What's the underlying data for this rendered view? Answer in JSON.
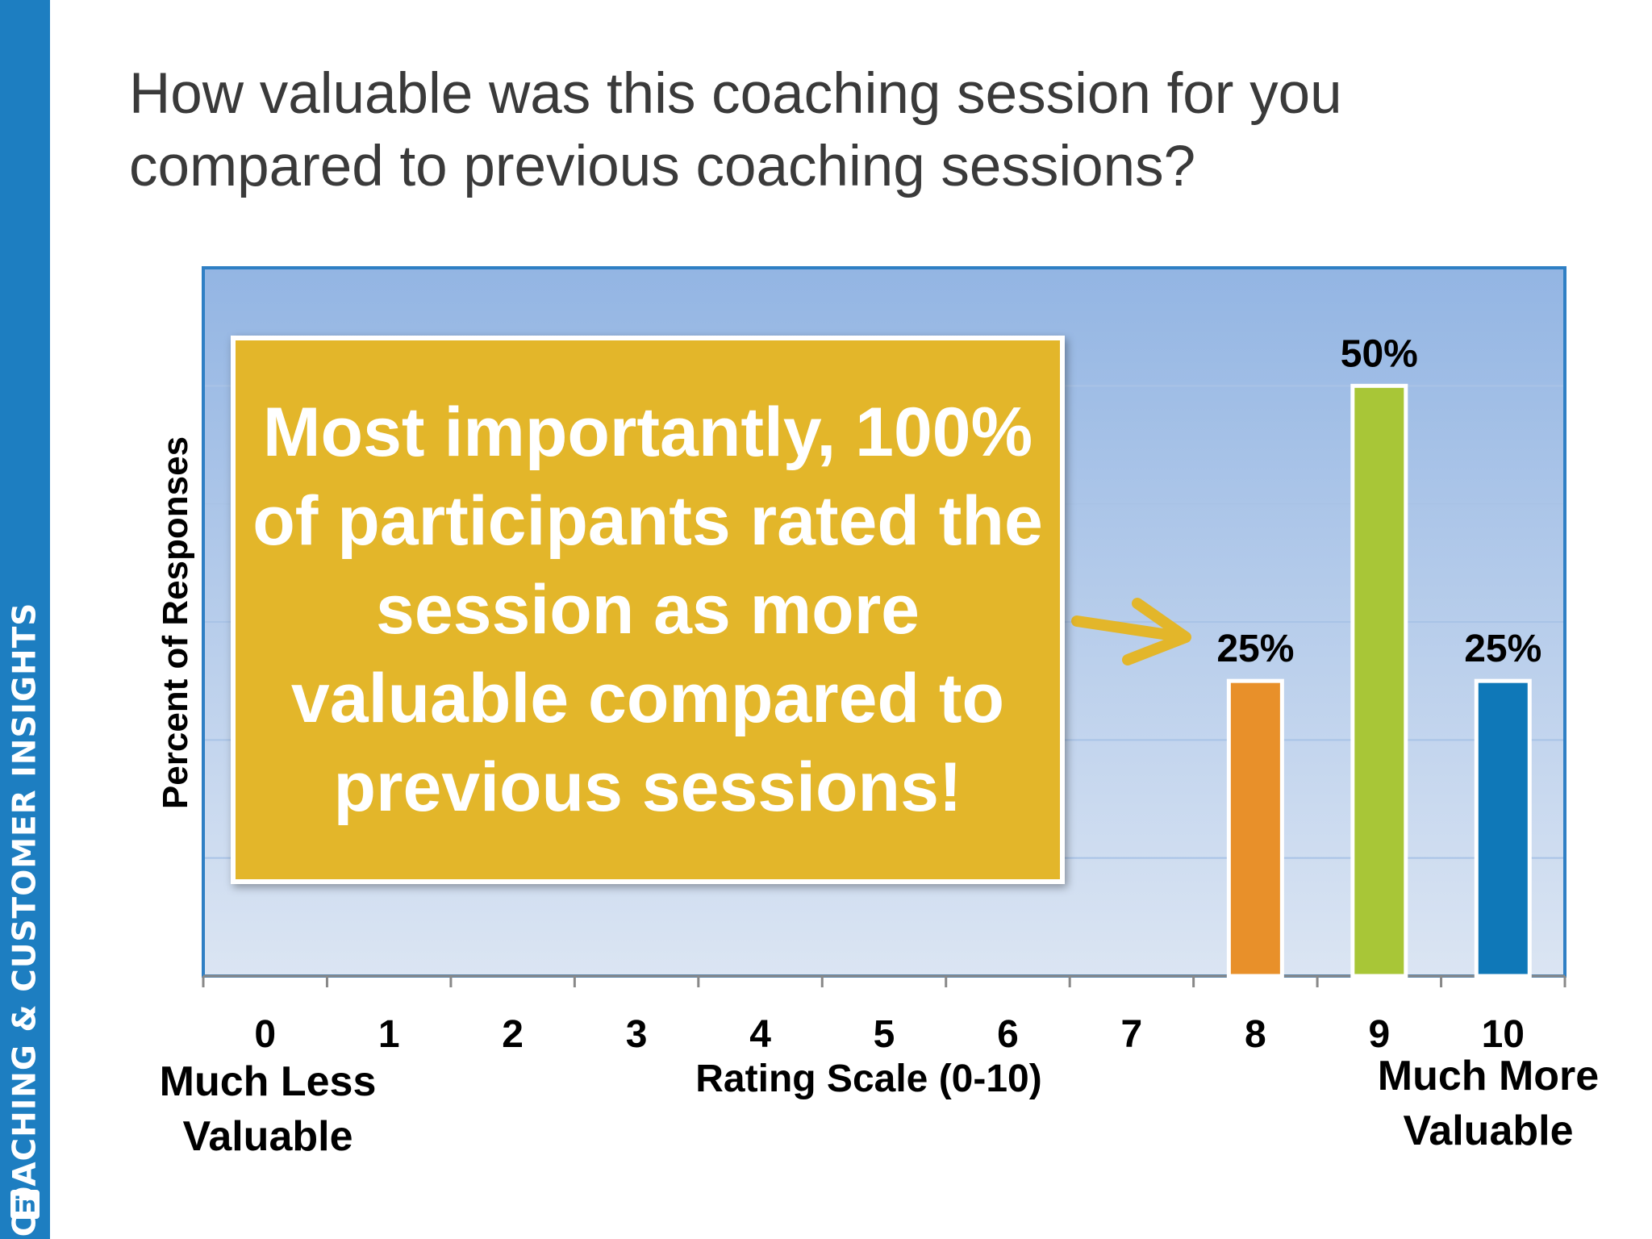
{
  "brand": {
    "text": "COACHING & CUSTOMER INSIGHTS",
    "logo": "in"
  },
  "slide": {
    "title": "How valuable was this coaching session for you compared to previous coaching sessions?"
  },
  "callout": {
    "text": "Most importantly, 100% of participants rated the session as more valuable compared to previous sessions!"
  },
  "chart_data": {
    "type": "bar",
    "xlabel": "Rating Scale (0-10)",
    "ylabel": "Percent of Responses",
    "categories": [
      "0",
      "1",
      "2",
      "3",
      "4",
      "5",
      "6",
      "7",
      "8",
      "9",
      "10"
    ],
    "values": [
      0,
      0,
      0,
      0,
      0,
      0,
      0,
      0,
      25,
      50,
      25
    ],
    "value_labels": [
      "",
      "",
      "",
      "",
      "",
      "",
      "",
      "",
      "25%",
      "50%",
      "25%"
    ],
    "bar_colors": [
      "#e8902a",
      "#e8902a",
      "#e8902a",
      "#e8902a",
      "#e8902a",
      "#e8902a",
      "#e8902a",
      "#e8902a",
      "#e8902a",
      "#a8c637",
      "#0f78b8"
    ],
    "ylim": [
      0,
      60
    ],
    "grid": true,
    "legend": "none",
    "scale_end_labels": {
      "left": "Much Less Valuable",
      "right": "Much More Valuable"
    }
  },
  "colors": {
    "sidebar": "#1d7ec1",
    "callout": "#e3b62a",
    "plot_top": "#93b5e3",
    "plot_bottom": "#dbe5f3",
    "arrow": "#e3b62a"
  }
}
